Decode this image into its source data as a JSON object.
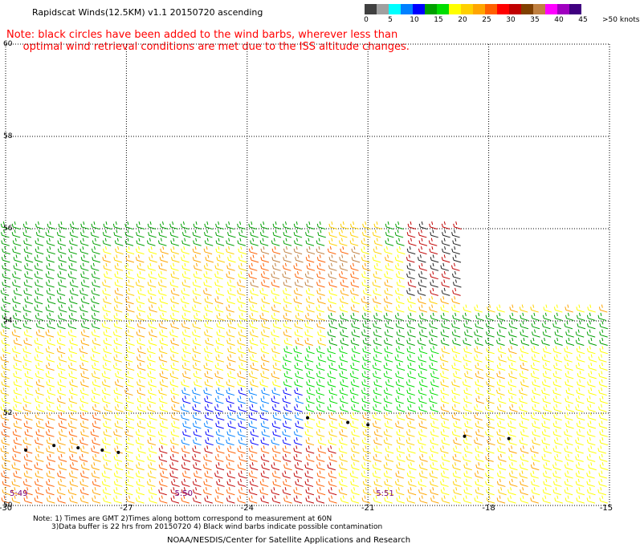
{
  "header": {
    "title": "Rapidscat Winds(12.5KM) v1.1 20150720 ascending",
    "note_line1": "Note: black circles have been added to the wind barbs, wherever less than",
    "note_line2": "     optimal wind retrieval conditions are met due to the ISS altitude changes."
  },
  "color_scale": {
    "tick_labels": [
      "0",
      "5",
      "10",
      "15",
      "20",
      "25",
      "30",
      "35",
      "40",
      "45",
      ">50 knots"
    ],
    "colors": [
      "#404040",
      "#a0a0a0",
      "#00ffff",
      "#0080ff",
      "#0000ff",
      "#00a000",
      "#00dd00",
      "#ffff00",
      "#ffd000",
      "#ffa500",
      "#ff6000",
      "#ff0000",
      "#c00000",
      "#804000",
      "#c08040",
      "#ff00ff",
      "#a000c0",
      "#400080"
    ]
  },
  "chart_data": {
    "type": "scatter",
    "xlim": [
      -30,
      -15
    ],
    "ylim": [
      50,
      60
    ],
    "xticks": [
      "-30",
      "-27",
      "-24",
      "-21",
      "-18",
      "-15"
    ],
    "yticks": [
      "50",
      "52",
      "54",
      "56",
      "58",
      "60"
    ],
    "grid": true,
    "swath_times": [
      "5:49",
      "5:50",
      "5:51"
    ]
  },
  "footer": {
    "notes_line1": "Note: 1) Times are GMT 2)Times along bottom correspond to measurement at 60N",
    "notes_line2": "3)Data buffer is 22 hrs from 20150720 4) Black wind barbs indicate possible contamination",
    "credit": "NOAA/NESDIS/Center for Satellite Applications and Research"
  }
}
